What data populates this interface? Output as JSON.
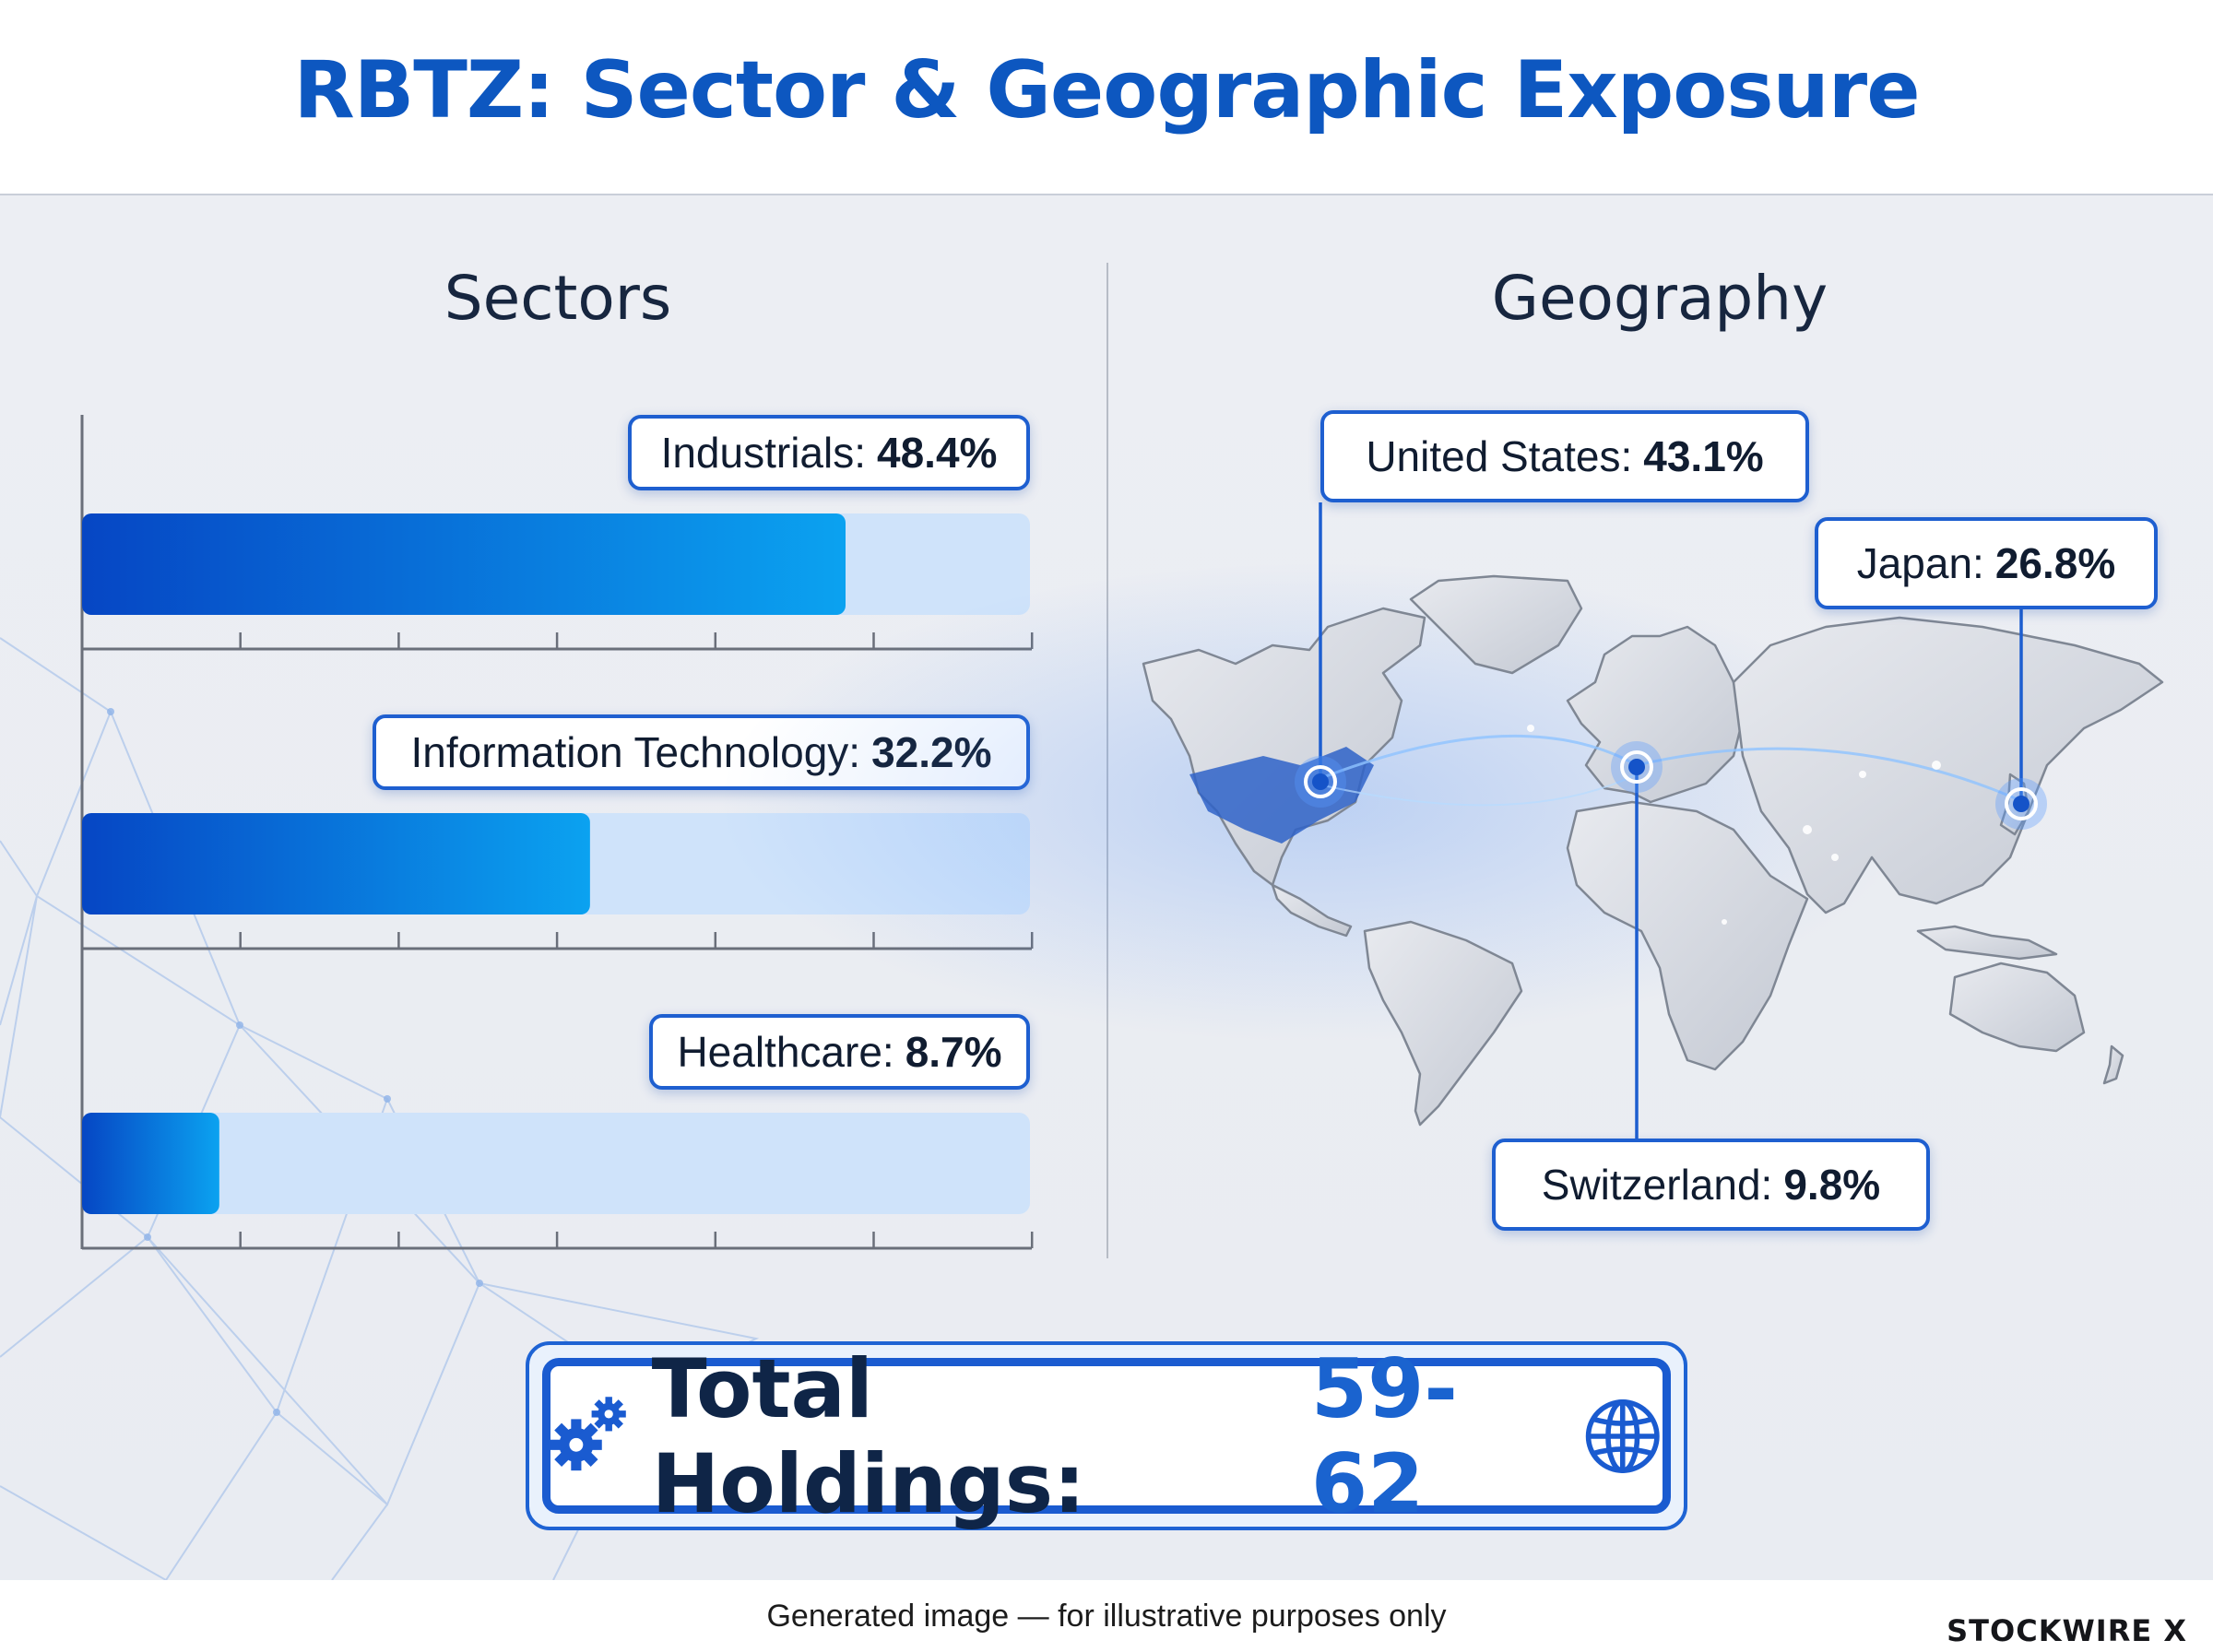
{
  "title": "RBTZ: Sector & Geographic Exposure",
  "sectors": {
    "heading": "Sectors",
    "label_separator": ":",
    "items": [
      {
        "name": "Industrials",
        "value": 48.4,
        "value_label": "48.4%"
      },
      {
        "name": "Information Technology",
        "value": 32.2,
        "value_label": "32.2%"
      },
      {
        "name": "Healthcare",
        "value": 8.7,
        "value_label": "8.7%"
      }
    ]
  },
  "geography": {
    "heading": "Geography",
    "items": [
      {
        "name": "United States",
        "value": 43.1,
        "value_label": "43.1%"
      },
      {
        "name": "Japan",
        "value": 26.8,
        "value_label": "26.8%"
      },
      {
        "name": "Switzerland",
        "value": 9.8,
        "value_label": "9.8%"
      }
    ]
  },
  "total": {
    "label": "Total Holdings:",
    "value": "59-62",
    "left_icon": "gears-icon",
    "right_icon": "globe-icon"
  },
  "footer": {
    "note": "Generated image — for illustrative purposes only",
    "brand": "STOCKWIRE X"
  },
  "colors": {
    "accent": "#0d57c0",
    "bar_fill_start": "#0646c4",
    "bar_fill_end": "#0ba2f0",
    "bar_track": "#cfe3fa"
  },
  "chart_data": [
    {
      "type": "bar",
      "orientation": "horizontal",
      "title": "Sectors",
      "categories": [
        "Industrials",
        "Information Technology",
        "Healthcare"
      ],
      "values": [
        48.4,
        32.2,
        8.7
      ],
      "unit": "%",
      "xlim": [
        0,
        60
      ],
      "grid": false
    },
    {
      "type": "map",
      "title": "Geography",
      "categories": [
        "United States",
        "Japan",
        "Switzerland"
      ],
      "values": [
        43.1,
        26.8,
        9.8
      ],
      "unit": "%"
    }
  ]
}
